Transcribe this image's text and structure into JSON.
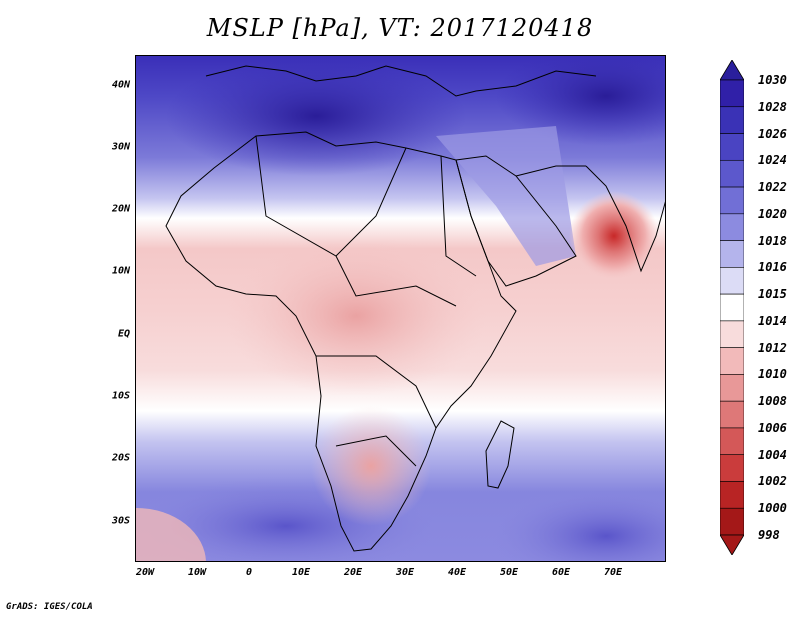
{
  "title": "MSLP [hPa], VT: 2017120418",
  "credit": "GrADS: IGES/COLA",
  "map": {
    "lat_labels": [
      "40N",
      "30N",
      "20N",
      "10N",
      "EQ",
      "10S",
      "20S",
      "30S"
    ],
    "lon_labels": [
      "20W",
      "10W",
      "0",
      "10E",
      "20E",
      "30E",
      "40E",
      "50E",
      "60E",
      "70E"
    ]
  },
  "colorbar": {
    "levels": [
      "1030",
      "1028",
      "1026",
      "1024",
      "1022",
      "1020",
      "1018",
      "1016",
      "1015",
      "1014",
      "1012",
      "1010",
      "1008",
      "1006",
      "1004",
      "1002",
      "1000",
      "998"
    ],
    "colors": [
      "#2a1f9c",
      "#3020a8",
      "#3a32b6",
      "#4a44c2",
      "#5c58cc",
      "#716fd6",
      "#8c8be0",
      "#b4b4ec",
      "#dcdcf6",
      "#ffffff",
      "#f8dcdc",
      "#f2baba",
      "#e89898",
      "#de7878",
      "#d45858",
      "#ca3c3c",
      "#b82424",
      "#a41818"
    ]
  }
}
